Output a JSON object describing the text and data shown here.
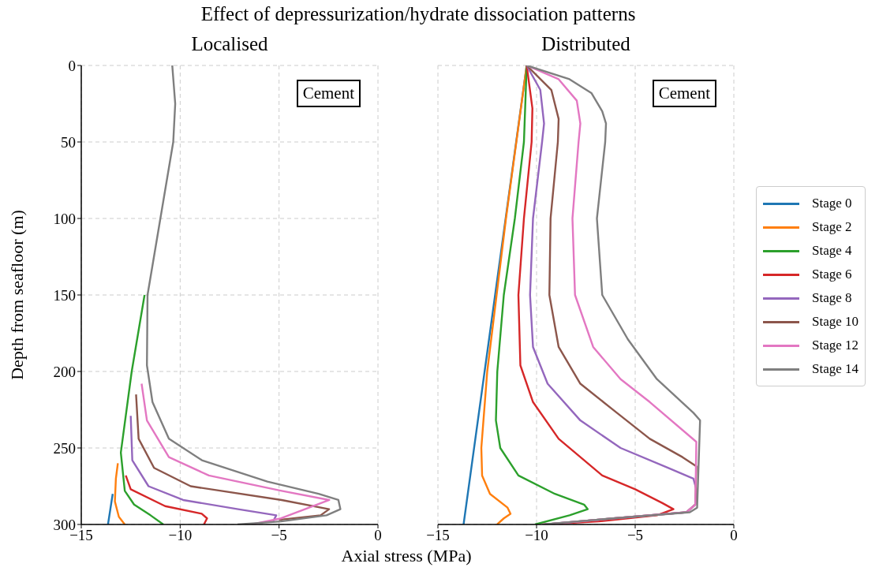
{
  "chart_data": [
    {
      "type": "line",
      "title": "Effect of depressurization/hydrate dissociation patterns",
      "subtitle": "Localised",
      "xlabel": "Axial stress (MPa)",
      "ylabel": "Depth from seafloor (m)",
      "xlim": [
        -15,
        0
      ],
      "xticks": [
        -15,
        -10,
        -5,
        0
      ],
      "ylim": [
        300,
        0
      ],
      "yticks": [
        0,
        50,
        100,
        150,
        200,
        250,
        300
      ],
      "grid": true,
      "annotations": [
        "Cement"
      ],
      "series": [
        {
          "color": "#1f77b4",
          "x": [
            -13.41,
            -13.65
          ],
          "values": [
            280,
            300
          ]
        },
        {
          "color": "#ff7f0e",
          "x": [
            -13.15,
            -13.25,
            -13.3,
            -13.1,
            -12.8
          ],
          "values": [
            260,
            270,
            285,
            295,
            300
          ]
        },
        {
          "color": "#2ca02c",
          "x": [
            -11.8,
            -12.45,
            -13.0,
            -12.8,
            -12.33,
            -11.5,
            -10.85
          ],
          "values": [
            150,
            200,
            253,
            278,
            287,
            294,
            300
          ]
        },
        {
          "color": "#d62728",
          "x": [
            -12.75,
            -12.5,
            -10.76,
            -8.91,
            -8.64,
            -8.8
          ],
          "values": [
            268,
            277,
            288,
            293,
            296,
            300
          ]
        },
        {
          "color": "#9467bd",
          "x": [
            -12.5,
            -12.42,
            -11.6,
            -9.85,
            -7.07,
            -5.14,
            -5.3
          ],
          "values": [
            229,
            258,
            275,
            284,
            290,
            294,
            298
          ]
        },
        {
          "color": "#8c564b",
          "x": [
            -12.23,
            -12.1,
            -11.32,
            -9.47,
            -4.87,
            -2.47,
            -2.9,
            -5.0
          ],
          "values": [
            215,
            244,
            263,
            275,
            284,
            290,
            294,
            297
          ]
        },
        {
          "color": "#e377c2",
          "x": [
            -11.95,
            -11.68,
            -10.57,
            -8.55,
            -4.87,
            -2.46,
            -4.9,
            -6.4
          ],
          "values": [
            208,
            232,
            256,
            268,
            278,
            284,
            296,
            300
          ]
        },
        {
          "color": "#7f7f7f",
          "x": [
            -10.4,
            -10.25,
            -10.35,
            -11.0,
            -11.65,
            -11.68,
            -11.4,
            -10.57,
            -8.9,
            -5.59,
            -3.0,
            -2.0,
            -1.9,
            -2.6,
            -4.9,
            -7.1
          ],
          "values": [
            0,
            25,
            50,
            100,
            150,
            196,
            220,
            244,
            258,
            272,
            280,
            284,
            290,
            294,
            298,
            300
          ]
        }
      ]
    },
    {
      "type": "line",
      "subtitle": "Distributed",
      "xlim": [
        -15,
        0
      ],
      "xticks": [
        -15,
        -10,
        -5,
        0
      ],
      "ylim": [
        300,
        0
      ],
      "yticks": [
        0,
        50,
        100,
        150,
        200,
        250,
        300
      ],
      "tick_labels": "x",
      "grid": true,
      "legend": "right",
      "annotations": [
        "Cement"
      ],
      "series": [
        {
          "name": "Stage 0",
          "color": "#1f77b4",
          "x": [
            -10.5,
            -12.1,
            -13.7
          ],
          "values": [
            0,
            150,
            300
          ]
        },
        {
          "name": "Stage 2",
          "color": "#ff7f0e",
          "x": [
            -10.5,
            -11.55,
            -12.5,
            -12.8,
            -12.76,
            -12.36,
            -11.47,
            -11.32,
            -11.66,
            -12.0
          ],
          "values": [
            0,
            100,
            200,
            250,
            268,
            280,
            289,
            293,
            296,
            300
          ]
        },
        {
          "name": "Stage 4",
          "color": "#2ca02c",
          "x": [
            -10.5,
            -10.64,
            -11.1,
            -11.66,
            -11.99,
            -12.06,
            -11.84,
            -10.92,
            -9.07,
            -7.59,
            -7.41,
            -8.33,
            -10.08
          ],
          "values": [
            0,
            50,
            100,
            150,
            200,
            232,
            250,
            268,
            280,
            287,
            290,
            294,
            300
          ]
        },
        {
          "name": "Stage 6",
          "color": "#d62728",
          "x": [
            -10.5,
            -10.21,
            -10.25,
            -10.64,
            -10.92,
            -10.82,
            -10.18,
            -8.88,
            -6.67,
            -5.0,
            -3.62,
            -3.06,
            -3.9,
            -6.85,
            -9.7
          ],
          "values": [
            0,
            28,
            50,
            100,
            150,
            196,
            220,
            244,
            268,
            277,
            286,
            290,
            294,
            298,
            300
          ]
        },
        {
          "name": "Stage 8",
          "color": "#9467bd",
          "x": [
            -10.5,
            -9.81,
            -9.62,
            -9.72,
            -10.18,
            -10.33,
            -10.18,
            -9.44,
            -7.78,
            -5.74,
            -3.34,
            -2.05,
            -1.9,
            -1.95,
            -2.4,
            -6.1,
            -9.6
          ],
          "values": [
            0,
            16,
            38,
            50,
            100,
            150,
            184,
            208,
            232,
            250,
            263,
            270,
            277,
            287,
            292,
            296,
            300
          ]
        },
        {
          "name": "Stage 10",
          "color": "#8c564b",
          "x": [
            -10.5,
            -9.25,
            -8.88,
            -8.92,
            -9.29,
            -9.35,
            -8.88,
            -7.78,
            -5.93,
            -4.26,
            -2.6,
            -1.9,
            -1.95,
            -2.4,
            -6.1,
            -9.6
          ],
          "values": [
            0,
            16,
            35,
            50,
            100,
            150,
            184,
            208,
            227,
            244,
            256,
            262,
            287,
            292,
            296,
            300
          ]
        },
        {
          "name": "Stage 12",
          "color": "#e377c2",
          "x": [
            -10.5,
            -8.88,
            -7.96,
            -7.78,
            -7.87,
            -8.18,
            -8.05,
            -7.13,
            -5.74,
            -4.26,
            -1.9,
            -1.95,
            -2.4,
            -6.1,
            -9.6
          ],
          "values": [
            0,
            9,
            23,
            38,
            50,
            100,
            150,
            184,
            205,
            220,
            246,
            287,
            292,
            296,
            300
          ]
        },
        {
          "name": "Stage 14",
          "color": "#7f7f7f",
          "x": [
            -10.5,
            -8.33,
            -7.22,
            -6.67,
            -6.48,
            -6.52,
            -6.94,
            -6.67,
            -5.37,
            -3.9,
            -2.05,
            -1.71,
            -1.86,
            -2.23,
            -6.1,
            -9.7
          ],
          "values": [
            0,
            9,
            18,
            30,
            38,
            50,
            100,
            150,
            179,
            205,
            227,
            232,
            289,
            292,
            296,
            300
          ]
        }
      ]
    }
  ]
}
